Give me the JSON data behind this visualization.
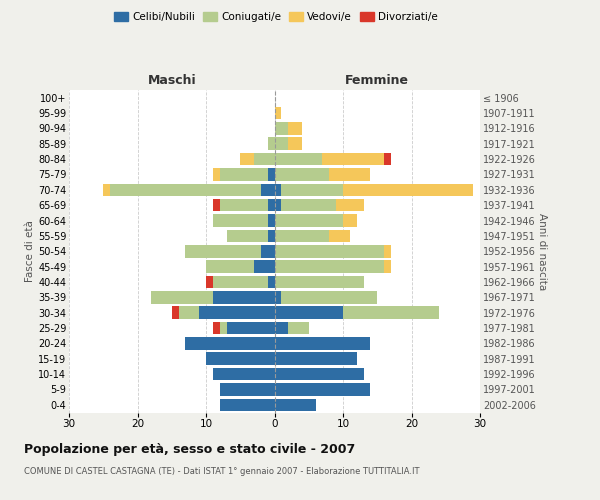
{
  "age_groups": [
    "0-4",
    "5-9",
    "10-14",
    "15-19",
    "20-24",
    "25-29",
    "30-34",
    "35-39",
    "40-44",
    "45-49",
    "50-54",
    "55-59",
    "60-64",
    "65-69",
    "70-74",
    "75-79",
    "80-84",
    "85-89",
    "90-94",
    "95-99",
    "100+"
  ],
  "birth_years": [
    "2002-2006",
    "1997-2001",
    "1992-1996",
    "1987-1991",
    "1982-1986",
    "1977-1981",
    "1972-1976",
    "1967-1971",
    "1962-1966",
    "1957-1961",
    "1952-1956",
    "1947-1951",
    "1942-1946",
    "1937-1941",
    "1932-1936",
    "1927-1931",
    "1922-1926",
    "1917-1921",
    "1912-1916",
    "1907-1911",
    "≤ 1906"
  ],
  "males": {
    "celibi": [
      8,
      8,
      9,
      10,
      13,
      7,
      11,
      9,
      1,
      3,
      2,
      1,
      1,
      1,
      2,
      1,
      0,
      0,
      0,
      0,
      0
    ],
    "coniugati": [
      0,
      0,
      0,
      0,
      0,
      1,
      3,
      9,
      8,
      7,
      11,
      6,
      8,
      7,
      22,
      7,
      3,
      1,
      0,
      0,
      0
    ],
    "vedovi": [
      0,
      0,
      0,
      0,
      0,
      0,
      0,
      0,
      0,
      0,
      0,
      0,
      0,
      0,
      1,
      1,
      2,
      0,
      0,
      0,
      0
    ],
    "divorziati": [
      0,
      0,
      0,
      0,
      0,
      1,
      1,
      0,
      1,
      0,
      0,
      0,
      0,
      1,
      0,
      0,
      0,
      0,
      0,
      0,
      0
    ]
  },
  "females": {
    "nubili": [
      6,
      14,
      13,
      12,
      14,
      2,
      10,
      1,
      0,
      0,
      0,
      0,
      0,
      1,
      1,
      0,
      0,
      0,
      0,
      0,
      0
    ],
    "coniugate": [
      0,
      0,
      0,
      0,
      0,
      3,
      14,
      14,
      13,
      16,
      16,
      8,
      10,
      8,
      9,
      8,
      7,
      2,
      2,
      0,
      0
    ],
    "vedove": [
      0,
      0,
      0,
      0,
      0,
      0,
      0,
      0,
      0,
      1,
      1,
      3,
      2,
      4,
      19,
      6,
      9,
      2,
      2,
      1,
      0
    ],
    "divorziate": [
      0,
      0,
      0,
      0,
      0,
      0,
      0,
      0,
      0,
      0,
      0,
      0,
      0,
      0,
      0,
      0,
      1,
      0,
      0,
      0,
      0
    ]
  },
  "color_celibi": "#2e6da4",
  "color_coniugati": "#b5cc8e",
  "color_vedovi": "#f5c75a",
  "color_divorziati": "#d9372a",
  "title": "Popolazione per età, sesso e stato civile - 2007",
  "subtitle": "COMUNE DI CASTEL CASTAGNA (TE) - Dati ISTAT 1° gennaio 2007 - Elaborazione TUTTITALIA.IT",
  "xlabel_left": "Maschi",
  "xlabel_right": "Femmine",
  "ylabel_left": "Fasce di età",
  "ylabel_right": "Anni di nascita",
  "xlim": 30,
  "bg_color": "#f0f0eb",
  "plot_bg": "#ffffff",
  "grid_color": "#cccccc"
}
